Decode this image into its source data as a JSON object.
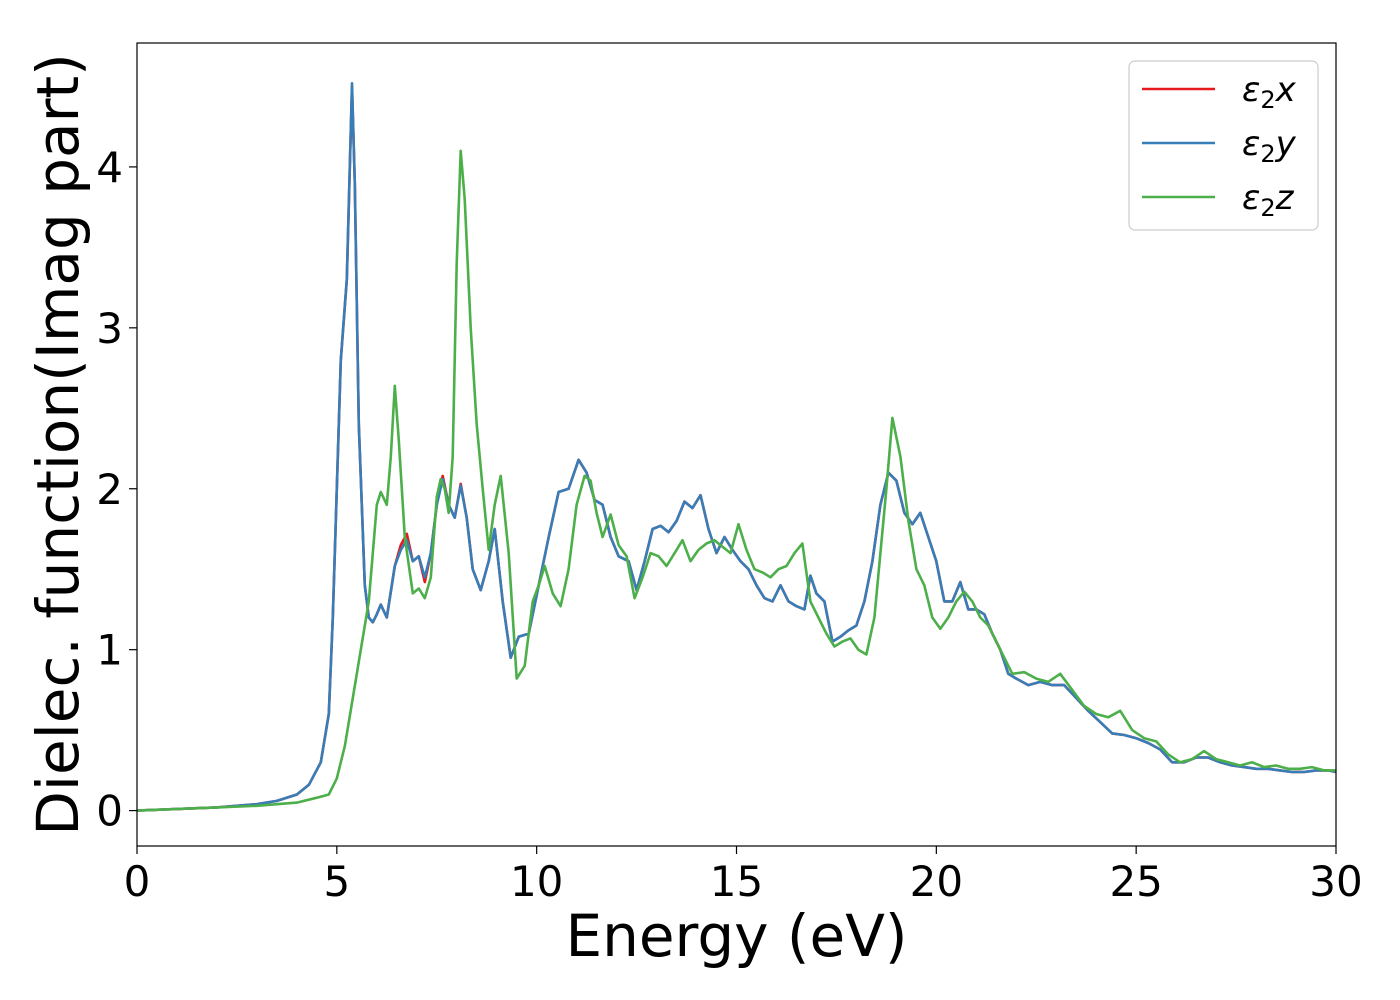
{
  "chart_data": {
    "type": "line",
    "title": "",
    "xlabel": "Energy (eV)",
    "ylabel": "Dielec. function(Imag part)",
    "xlim": [
      0,
      30
    ],
    "ylim": [
      -0.22,
      4.77
    ],
    "xticks": [
      0,
      5,
      10,
      15,
      20,
      25,
      30
    ],
    "yticks": [
      0,
      1,
      2,
      3,
      4
    ],
    "grid": false,
    "legend_position": "top-right",
    "series": [
      {
        "name": "ε2x",
        "legend_base": "ε",
        "legend_sub": "2",
        "legend_var": "x",
        "color": "#e41a1c",
        "x": [
          0,
          2,
          3,
          3.5,
          4,
          4.3,
          4.6,
          4.8,
          4.9,
          5.0,
          5.1,
          5.25,
          5.38,
          5.45,
          5.55,
          5.7,
          5.8,
          5.9,
          6.0,
          6.1,
          6.25,
          6.45,
          6.6,
          6.75,
          6.9,
          7.05,
          7.2,
          7.35,
          7.5,
          7.65,
          7.8,
          7.95,
          8.1,
          8.25,
          8.4,
          8.6,
          8.8,
          8.95,
          9.15,
          9.35,
          9.55,
          9.8,
          10.05,
          10.3,
          10.55,
          10.8,
          11.05,
          11.25,
          11.45,
          11.65,
          11.85,
          12.05,
          12.3,
          12.5,
          12.7,
          12.9,
          13.1,
          13.3,
          13.5,
          13.7,
          13.9,
          14.1,
          14.3,
          14.5,
          14.7,
          14.9,
          15.1,
          15.3,
          15.5,
          15.7,
          15.9,
          16.1,
          16.3,
          16.5,
          16.7,
          16.85,
          17.0,
          17.2,
          17.4,
          17.6,
          17.8,
          18.0,
          18.2,
          18.4,
          18.6,
          18.8,
          19.0,
          19.2,
          19.4,
          19.6,
          19.8,
          20.0,
          20.2,
          20.4,
          20.6,
          20.8,
          21.0,
          21.2,
          21.4,
          21.6,
          21.8,
          22.0,
          22.3,
          22.6,
          22.9,
          23.2,
          23.5,
          23.8,
          24.1,
          24.4,
          24.7,
          25.0,
          25.3,
          25.6,
          25.9,
          26.2,
          26.5,
          26.8,
          27.1,
          27.4,
          27.7,
          28.0,
          28.3,
          28.6,
          28.9,
          29.2,
          29.5,
          29.8,
          30.0
        ],
        "y": [
          0.0,
          0.02,
          0.04,
          0.06,
          0.1,
          0.16,
          0.3,
          0.6,
          1.2,
          2.0,
          2.8,
          3.3,
          4.5,
          3.9,
          2.4,
          1.4,
          1.2,
          1.17,
          1.22,
          1.28,
          1.2,
          1.52,
          1.65,
          1.72,
          1.55,
          1.58,
          1.42,
          1.6,
          1.9,
          2.08,
          1.9,
          1.82,
          2.03,
          1.82,
          1.5,
          1.37,
          1.55,
          1.75,
          1.3,
          0.95,
          1.08,
          1.1,
          1.4,
          1.7,
          1.98,
          2.0,
          2.18,
          2.1,
          1.93,
          1.9,
          1.7,
          1.58,
          1.55,
          1.37,
          1.55,
          1.75,
          1.77,
          1.73,
          1.8,
          1.92,
          1.88,
          1.96,
          1.75,
          1.6,
          1.7,
          1.62,
          1.55,
          1.5,
          1.4,
          1.32,
          1.3,
          1.4,
          1.3,
          1.27,
          1.25,
          1.46,
          1.35,
          1.3,
          1.05,
          1.08,
          1.12,
          1.15,
          1.3,
          1.55,
          1.9,
          2.1,
          2.05,
          1.85,
          1.78,
          1.85,
          1.7,
          1.55,
          1.3,
          1.3,
          1.42,
          1.25,
          1.25,
          1.22,
          1.1,
          1.0,
          0.85,
          0.82,
          0.78,
          0.8,
          0.78,
          0.78,
          0.7,
          0.62,
          0.55,
          0.48,
          0.47,
          0.45,
          0.42,
          0.38,
          0.3,
          0.3,
          0.33,
          0.33,
          0.3,
          0.28,
          0.27,
          0.26,
          0.26,
          0.25,
          0.24,
          0.24,
          0.25,
          0.25,
          0.24
        ]
      },
      {
        "name": "ε2y",
        "legend_base": "ε",
        "legend_sub": "2",
        "legend_var": "y",
        "color": "#377eb8",
        "x": [
          0,
          2,
          3,
          3.5,
          4,
          4.3,
          4.6,
          4.8,
          4.9,
          5.0,
          5.1,
          5.25,
          5.38,
          5.45,
          5.55,
          5.7,
          5.8,
          5.9,
          6.0,
          6.1,
          6.25,
          6.45,
          6.6,
          6.75,
          6.9,
          7.05,
          7.2,
          7.35,
          7.5,
          7.65,
          7.8,
          7.95,
          8.1,
          8.25,
          8.4,
          8.6,
          8.8,
          8.95,
          9.15,
          9.35,
          9.55,
          9.8,
          10.05,
          10.3,
          10.55,
          10.8,
          11.05,
          11.25,
          11.45,
          11.65,
          11.85,
          12.05,
          12.3,
          12.5,
          12.7,
          12.9,
          13.1,
          13.3,
          13.5,
          13.7,
          13.9,
          14.1,
          14.3,
          14.5,
          14.7,
          14.9,
          15.1,
          15.3,
          15.5,
          15.7,
          15.9,
          16.1,
          16.3,
          16.5,
          16.7,
          16.85,
          17.0,
          17.2,
          17.4,
          17.6,
          17.8,
          18.0,
          18.2,
          18.4,
          18.6,
          18.8,
          19.0,
          19.2,
          19.4,
          19.6,
          19.8,
          20.0,
          20.2,
          20.4,
          20.6,
          20.8,
          21.0,
          21.2,
          21.4,
          21.6,
          21.8,
          22.0,
          22.3,
          22.6,
          22.9,
          23.2,
          23.5,
          23.8,
          24.1,
          24.4,
          24.7,
          25.0,
          25.3,
          25.6,
          25.9,
          26.2,
          26.5,
          26.8,
          27.1,
          27.4,
          27.7,
          28.0,
          28.3,
          28.6,
          28.9,
          29.2,
          29.5,
          29.8,
          30.0
        ],
        "y": [
          0.0,
          0.02,
          0.04,
          0.06,
          0.1,
          0.16,
          0.3,
          0.6,
          1.2,
          2.0,
          2.8,
          3.3,
          4.52,
          3.9,
          2.4,
          1.4,
          1.2,
          1.17,
          1.22,
          1.28,
          1.2,
          1.52,
          1.62,
          1.68,
          1.55,
          1.58,
          1.45,
          1.6,
          1.9,
          2.06,
          1.9,
          1.82,
          2.02,
          1.82,
          1.5,
          1.37,
          1.55,
          1.75,
          1.3,
          0.95,
          1.08,
          1.1,
          1.4,
          1.7,
          1.98,
          2.0,
          2.18,
          2.1,
          1.93,
          1.9,
          1.7,
          1.58,
          1.55,
          1.37,
          1.55,
          1.75,
          1.77,
          1.73,
          1.8,
          1.92,
          1.88,
          1.96,
          1.75,
          1.6,
          1.7,
          1.62,
          1.55,
          1.5,
          1.4,
          1.32,
          1.3,
          1.4,
          1.3,
          1.27,
          1.25,
          1.46,
          1.35,
          1.3,
          1.05,
          1.08,
          1.12,
          1.15,
          1.3,
          1.55,
          1.9,
          2.1,
          2.05,
          1.85,
          1.78,
          1.85,
          1.7,
          1.55,
          1.3,
          1.3,
          1.42,
          1.25,
          1.25,
          1.22,
          1.1,
          1.0,
          0.85,
          0.82,
          0.78,
          0.8,
          0.78,
          0.78,
          0.7,
          0.62,
          0.55,
          0.48,
          0.47,
          0.45,
          0.42,
          0.38,
          0.3,
          0.3,
          0.33,
          0.33,
          0.3,
          0.28,
          0.27,
          0.26,
          0.26,
          0.25,
          0.24,
          0.24,
          0.25,
          0.25,
          0.24
        ]
      },
      {
        "name": "ε2z",
        "legend_base": "ε",
        "legend_sub": "2",
        "legend_var": "z",
        "color": "#4daf4a",
        "x": [
          0,
          2,
          3,
          4,
          4.5,
          4.8,
          5.0,
          5.2,
          5.4,
          5.6,
          5.8,
          6.0,
          6.1,
          6.25,
          6.35,
          6.45,
          6.55,
          6.7,
          6.9,
          7.05,
          7.2,
          7.35,
          7.5,
          7.6,
          7.7,
          7.8,
          7.9,
          8.0,
          8.1,
          8.2,
          8.35,
          8.5,
          8.65,
          8.8,
          8.95,
          9.1,
          9.3,
          9.5,
          9.7,
          9.9,
          10.05,
          10.2,
          10.4,
          10.6,
          10.8,
          11.0,
          11.2,
          11.35,
          11.5,
          11.65,
          11.85,
          12.05,
          12.25,
          12.45,
          12.65,
          12.85,
          13.05,
          13.25,
          13.45,
          13.65,
          13.85,
          14.05,
          14.25,
          14.45,
          14.65,
          14.85,
          15.05,
          15.25,
          15.45,
          15.65,
          15.85,
          16.05,
          16.25,
          16.45,
          16.65,
          16.85,
          17.05,
          17.25,
          17.45,
          17.65,
          17.85,
          18.05,
          18.25,
          18.45,
          18.6,
          18.75,
          18.9,
          19.1,
          19.3,
          19.5,
          19.7,
          19.9,
          20.1,
          20.3,
          20.5,
          20.7,
          20.9,
          21.1,
          21.3,
          21.5,
          21.7,
          21.9,
          22.2,
          22.5,
          22.8,
          23.1,
          23.4,
          23.7,
          24.0,
          24.3,
          24.6,
          24.9,
          25.2,
          25.5,
          25.8,
          26.1,
          26.4,
          26.7,
          27.0,
          27.3,
          27.6,
          27.9,
          28.2,
          28.5,
          28.8,
          29.1,
          29.4,
          29.7,
          30.0
        ],
        "y": [
          0.0,
          0.02,
          0.03,
          0.05,
          0.08,
          0.1,
          0.2,
          0.4,
          0.7,
          1.0,
          1.3,
          1.9,
          1.98,
          1.9,
          2.2,
          2.64,
          2.3,
          1.7,
          1.35,
          1.38,
          1.32,
          1.45,
          1.95,
          2.06,
          2.0,
          1.85,
          2.2,
          3.4,
          4.1,
          3.8,
          3.0,
          2.4,
          2.0,
          1.62,
          1.9,
          2.08,
          1.6,
          0.82,
          0.9,
          1.3,
          1.4,
          1.52,
          1.35,
          1.27,
          1.5,
          1.9,
          2.08,
          2.05,
          1.85,
          1.7,
          1.84,
          1.65,
          1.58,
          1.32,
          1.45,
          1.6,
          1.58,
          1.52,
          1.6,
          1.68,
          1.55,
          1.62,
          1.66,
          1.68,
          1.64,
          1.6,
          1.78,
          1.62,
          1.5,
          1.48,
          1.45,
          1.5,
          1.52,
          1.6,
          1.66,
          1.3,
          1.2,
          1.1,
          1.02,
          1.05,
          1.07,
          1.0,
          0.97,
          1.2,
          1.6,
          2.0,
          2.44,
          2.2,
          1.8,
          1.5,
          1.4,
          1.2,
          1.13,
          1.2,
          1.3,
          1.36,
          1.3,
          1.2,
          1.15,
          1.05,
          0.95,
          0.85,
          0.86,
          0.82,
          0.8,
          0.85,
          0.75,
          0.65,
          0.6,
          0.58,
          0.62,
          0.5,
          0.45,
          0.43,
          0.35,
          0.3,
          0.32,
          0.37,
          0.32,
          0.3,
          0.28,
          0.3,
          0.27,
          0.28,
          0.26,
          0.26,
          0.27,
          0.25,
          0.25
        ]
      }
    ]
  }
}
